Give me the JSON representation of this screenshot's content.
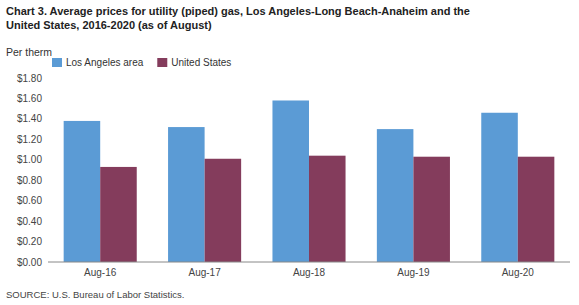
{
  "chart_data": {
    "type": "bar",
    "title": [
      "Chart 3. Average prices for utility (piped) gas, Los Angeles-Long Beach-Anaheim and the",
      "United States, 2016-2020  (as of August)"
    ],
    "y_label": "Per therm",
    "annotations": [
      "SOURCE: U.S. Bureau of Labor Statistics."
    ],
    "categories": [
      "Aug-16",
      "Aug-17",
      "Aug-18",
      "Aug-19",
      "Aug-20"
    ],
    "series": [
      {
        "name": "Los Angeles area",
        "color": "#5B9BD5",
        "values": [
          1.38,
          1.32,
          1.58,
          1.3,
          1.46
        ]
      },
      {
        "name": "United States",
        "color": "#843C5C",
        "values": [
          0.93,
          1.01,
          1.04,
          1.03,
          1.03
        ]
      }
    ],
    "ylim": [
      0,
      1.8
    ],
    "yticks": [
      {
        "value": 0.0,
        "label": "$0.00"
      },
      {
        "value": 0.2,
        "label": "$0.20"
      },
      {
        "value": 0.4,
        "label": "$0.40"
      },
      {
        "value": 0.6,
        "label": "$0.60"
      },
      {
        "value": 0.8,
        "label": "$0.80"
      },
      {
        "value": 1.0,
        "label": "$1.00"
      },
      {
        "value": 1.2,
        "label": "$1.20"
      },
      {
        "value": 1.4,
        "label": "$1.40"
      },
      {
        "value": 1.6,
        "label": "$1.60"
      },
      {
        "value": 1.8,
        "label": "$1.80"
      }
    ],
    "grid": false,
    "legend": "upper left"
  }
}
